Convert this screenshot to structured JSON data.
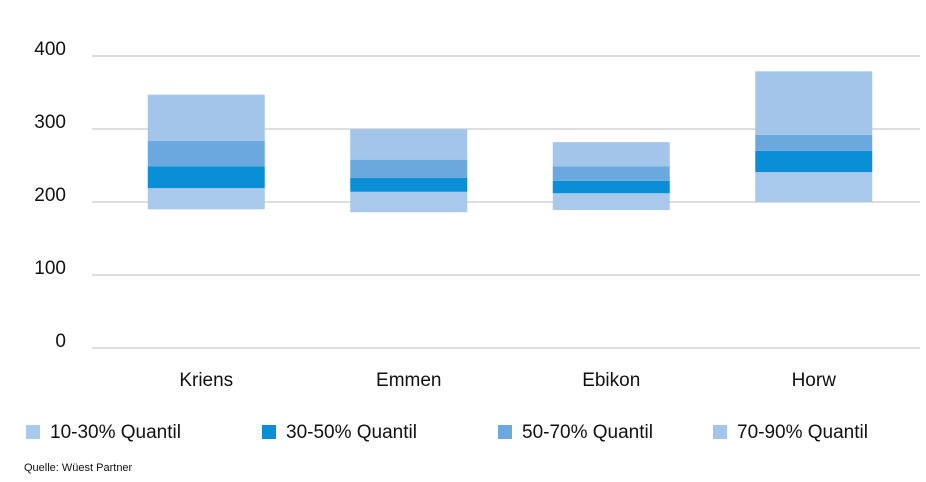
{
  "chart_data": {
    "type": "floating-stacked-bar",
    "categories": [
      "Kriens",
      "Emmen",
      "Ebikon",
      "Horw"
    ],
    "series": [
      {
        "name": "10-30% Quantil",
        "color": "#a8c8ec",
        "values": [
          [
            190,
            219
          ],
          [
            186,
            214
          ],
          [
            189,
            212
          ],
          [
            200,
            241
          ]
        ]
      },
      {
        "name": "30-50% Quantil",
        "color": "#0a8fd6",
        "values": [
          [
            219,
            249
          ],
          [
            214,
            233
          ],
          [
            212,
            229
          ],
          [
            241,
            270
          ]
        ]
      },
      {
        "name": "50-70% Quantil",
        "color": "#6aa8de",
        "values": [
          [
            249,
            284
          ],
          [
            233,
            258
          ],
          [
            229,
            249
          ],
          [
            270,
            292
          ]
        ]
      },
      {
        "name": "70-90% Quantil",
        "color": "#a4c5ea",
        "values": [
          [
            284,
            347
          ],
          [
            258,
            300
          ],
          [
            249,
            282
          ],
          [
            292,
            379
          ]
        ]
      }
    ],
    "ylim": [
      0,
      400
    ],
    "yticks": [
      0,
      100,
      200,
      300,
      400
    ],
    "grid": true,
    "source": "Quelle: Wüest Partner"
  }
}
